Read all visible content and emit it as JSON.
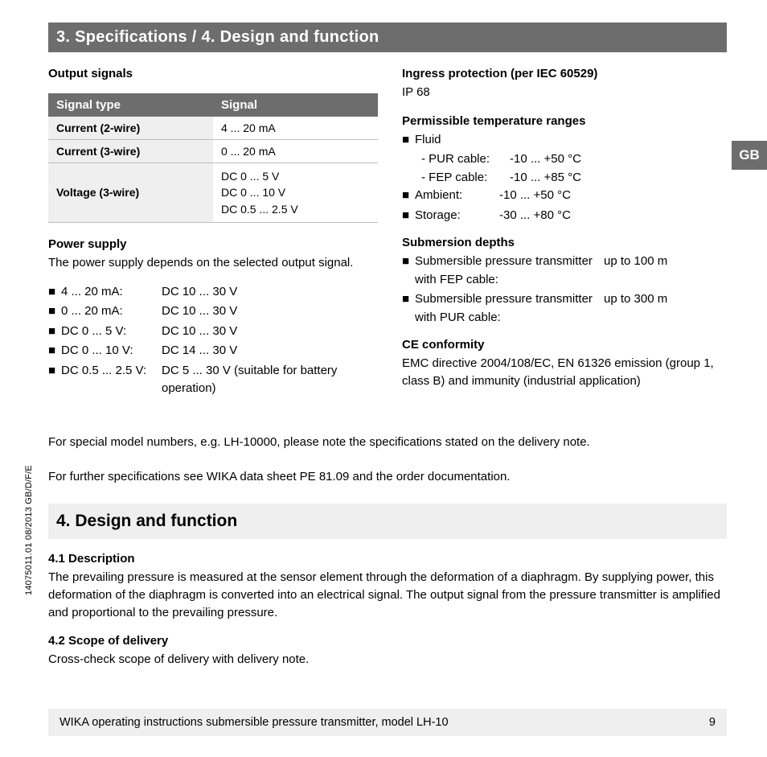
{
  "header": {
    "title": "3. Specifications / 4. Design and function"
  },
  "left": {
    "output_signals_label": "Output signals",
    "table": {
      "columns": [
        "Signal type",
        "Signal"
      ],
      "rows": [
        {
          "type": "Current (2-wire)",
          "signal": "4 ... 20 mA"
        },
        {
          "type": "Current (3-wire)",
          "signal": "0 ... 20 mA"
        },
        {
          "type": "Voltage (3-wire)",
          "signal": "DC 0 ... 5 V\nDC 0 ... 10 V\nDC 0.5 ... 2.5 V"
        }
      ]
    },
    "power_supply_label": "Power supply",
    "power_supply_text": "The power supply depends on the selected output signal.",
    "power_list": [
      {
        "key": "4 ... 20 mA:",
        "val": "DC 10 ... 30 V"
      },
      {
        "key": "0 ... 20 mA:",
        "val": "DC 10 ... 30 V"
      },
      {
        "key": "DC 0 ... 5 V:",
        "val": "DC 10 ... 30 V"
      },
      {
        "key": "DC 0 ... 10 V:",
        "val": "DC 14 ... 30 V"
      },
      {
        "key": "DC 0.5 ... 2.5 V:",
        "val": "DC 5 ... 30 V (suitable for battery operation)"
      }
    ]
  },
  "right": {
    "ingress_label": "Ingress protection (per IEC 60529)",
    "ingress_value": "IP 68",
    "temp_label": "Permissible temperature ranges",
    "temp_list": [
      {
        "key": "Fluid",
        "val": "",
        "sub": [
          {
            "key": "- PUR cable:",
            "val": "-10 ... +50 °C"
          },
          {
            "key": "- FEP cable:",
            "val": "-10 ... +85 °C"
          }
        ]
      },
      {
        "key": "Ambient:",
        "val": "-10 ... +50 °C"
      },
      {
        "key": "Storage:",
        "val": "-30 ... +80 °C"
      }
    ],
    "submersion_label": "Submersion depths",
    "submersion_list": [
      {
        "lbl": "Submersible pressure transmitter with FEP cable:",
        "val": "up to 100 m"
      },
      {
        "lbl": "Submersible pressure transmitter with PUR cable:",
        "val": "up to 300 m"
      }
    ],
    "ce_label": "CE conformity",
    "ce_text": "EMC directive 2004/108/EC, EN 61326 emission (group 1, class B) and immunity (industrial application)"
  },
  "gb_badge": "GB",
  "notes": {
    "n1": "For special model numbers, e.g. LH-10000, please note the specifications stated on the delivery note.",
    "n2": "For further specifications see WIKA data sheet PE 81.09 and the order documentation."
  },
  "section4": {
    "title": "4. Design and function",
    "s1_label": "4.1  Description",
    "s1_text": "The prevailing pressure is measured at the sensor element through the deformation of a diaphragm. By supplying power, this deformation of the diaphragm is converted into an electrical signal. The output signal from the pressure transmitter is amplified and proportional to the prevailing pressure.",
    "s2_label": "4.2  Scope of delivery",
    "s2_text": "Cross-check scope of delivery with delivery note."
  },
  "vertical_note": "14075011.01 08/2013 GB/D/F/E",
  "footer": {
    "text": "WIKA operating instructions submersible pressure transmitter, model LH-10",
    "page": "9"
  },
  "colors": {
    "dark_grey": "#6d6d6d",
    "light_grey": "#efefef",
    "border": "#bdbdbd"
  }
}
